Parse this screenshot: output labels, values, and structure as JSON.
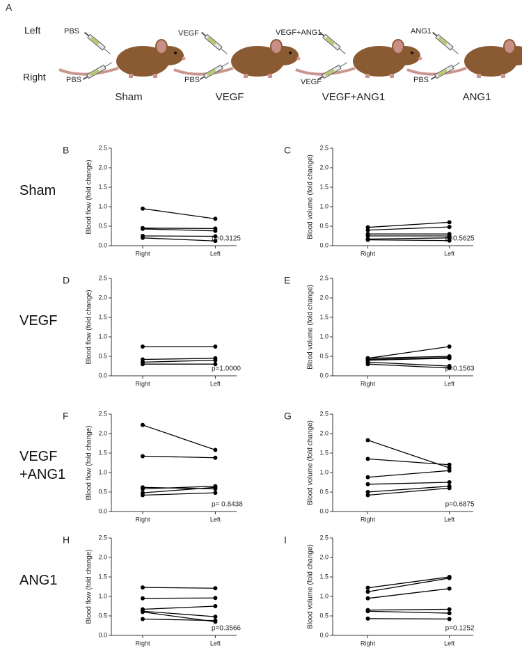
{
  "panel_a": {
    "letter": "A",
    "side_left": "Left",
    "side_right": "Right",
    "groups": [
      {
        "name": "Sham",
        "left": "PBS",
        "right": "PBS"
      },
      {
        "name": "VEGF",
        "left": "VEGF",
        "right": "PBS"
      },
      {
        "name": "VEGF+ANG1",
        "left": "VEGF+ANG1",
        "right": "VEGF"
      },
      {
        "name": "ANG1",
        "left": "ANG1",
        "right": "PBS"
      }
    ]
  },
  "chart_data": [
    {
      "type": "line",
      "panel": "B",
      "row_label": "Sham",
      "ylabel": "Blood flow (fold change)",
      "annotation": "p=0.3125",
      "categories": [
        "Right",
        "Left"
      ],
      "ylim": [
        0,
        2.5
      ],
      "yticks": [
        {
          "value": 0,
          "label": "0.0"
        },
        {
          "value": 0.5,
          "label": "0.5"
        },
        {
          "value": 1,
          "label": "1.0"
        },
        {
          "value": 1.5,
          "label": "1.5"
        },
        {
          "value": 2,
          "label": "2.0"
        },
        {
          "value": 2.5,
          "label": "2.5"
        }
      ],
      "color": "#000000",
      "series": [
        {
          "values": [
            0.95,
            0.69
          ]
        },
        {
          "values": [
            0.45,
            0.44
          ]
        },
        {
          "values": [
            0.43,
            0.38
          ]
        },
        {
          "values": [
            0.25,
            0.24
          ]
        },
        {
          "values": [
            0.2,
            0.12
          ]
        }
      ]
    },
    {
      "type": "line",
      "panel": "C",
      "ylabel": "Blood volume (fold change)",
      "annotation": "p=0.5625",
      "categories": [
        "Right",
        "Left"
      ],
      "ylim": [
        0,
        2.5
      ],
      "yticks": [
        {
          "value": 0,
          "label": "0.0"
        },
        {
          "value": 0.5,
          "label": "0.5"
        },
        {
          "value": 1,
          "label": "1.0"
        },
        {
          "value": 1.5,
          "label": "1.5"
        },
        {
          "value": 2,
          "label": "2.0"
        },
        {
          "value": 2.5,
          "label": "2.5"
        }
      ],
      "color": "#000000",
      "series": [
        {
          "values": [
            0.47,
            0.6
          ]
        },
        {
          "values": [
            0.4,
            0.48
          ]
        },
        {
          "values": [
            0.3,
            0.3
          ]
        },
        {
          "values": [
            0.25,
            0.25
          ]
        },
        {
          "values": [
            0.17,
            0.2
          ]
        },
        {
          "values": [
            0.15,
            0.13
          ]
        }
      ]
    },
    {
      "type": "line",
      "panel": "D",
      "row_label": "VEGF",
      "ylabel": "Blood flow (fold change)",
      "annotation": "p=1.0000",
      "categories": [
        "Right",
        "Left"
      ],
      "ylim": [
        0,
        2.5
      ],
      "yticks": [
        {
          "value": 0,
          "label": "0.0"
        },
        {
          "value": 0.5,
          "label": "0.5"
        },
        {
          "value": 1,
          "label": "1.0"
        },
        {
          "value": 1.5,
          "label": "1.5"
        },
        {
          "value": 2,
          "label": "2.0"
        },
        {
          "value": 2.5,
          "label": "2.5"
        }
      ],
      "color": "#000000",
      "series": [
        {
          "values": [
            0.75,
            0.75
          ]
        },
        {
          "values": [
            0.42,
            0.45
          ]
        },
        {
          "values": [
            0.35,
            0.4
          ]
        },
        {
          "values": [
            0.3,
            0.3
          ]
        }
      ]
    },
    {
      "type": "line",
      "panel": "E",
      "ylabel": "Blood volume (fold change)",
      "annotation": "p=0.1563",
      "categories": [
        "Right",
        "Left"
      ],
      "ylim": [
        0,
        2.5
      ],
      "yticks": [
        {
          "value": 0,
          "label": "0.0"
        },
        {
          "value": 0.5,
          "label": "0.5"
        },
        {
          "value": 1,
          "label": "1.0"
        },
        {
          "value": 1.5,
          "label": "1.5"
        },
        {
          "value": 2,
          "label": "2.0"
        },
        {
          "value": 2.5,
          "label": "2.5"
        }
      ],
      "color": "#000000",
      "series": [
        {
          "values": [
            0.45,
            0.75
          ]
        },
        {
          "values": [
            0.45,
            0.5
          ]
        },
        {
          "values": [
            0.42,
            0.47
          ]
        },
        {
          "values": [
            0.4,
            0.45
          ]
        },
        {
          "values": [
            0.35,
            0.25
          ]
        },
        {
          "values": [
            0.3,
            0.2
          ]
        }
      ]
    },
    {
      "type": "line",
      "panel": "F",
      "row_label": "VEGF +ANG1",
      "ylabel": "Blood flow (fold change)",
      "annotation": "p= 0.8438",
      "categories": [
        "Right",
        "Left"
      ],
      "ylim": [
        0,
        2.5
      ],
      "yticks": [
        {
          "value": 0,
          "label": "0.0"
        },
        {
          "value": 0.5,
          "label": "0.5"
        },
        {
          "value": 1,
          "label": "1.0"
        },
        {
          "value": 1.5,
          "label": "1.5"
        },
        {
          "value": 2,
          "label": "2.0"
        },
        {
          "value": 2.5,
          "label": "2.5"
        }
      ],
      "color": "#000000",
      "series": [
        {
          "values": [
            2.22,
            1.58
          ]
        },
        {
          "values": [
            1.42,
            1.38
          ]
        },
        {
          "values": [
            0.62,
            0.58
          ]
        },
        {
          "values": [
            0.58,
            0.65
          ]
        },
        {
          "values": [
            0.48,
            0.62
          ]
        },
        {
          "values": [
            0.42,
            0.48
          ]
        }
      ]
    },
    {
      "type": "line",
      "panel": "G",
      "ylabel": "Blood volume (fold change)",
      "annotation": "p=0.6875",
      "categories": [
        "Right",
        "Left"
      ],
      "ylim": [
        0,
        2.5
      ],
      "yticks": [
        {
          "value": 0,
          "label": "0.0"
        },
        {
          "value": 0.5,
          "label": "0.5"
        },
        {
          "value": 1,
          "label": "1.0"
        },
        {
          "value": 1.5,
          "label": "1.5"
        },
        {
          "value": 2,
          "label": "2.0"
        },
        {
          "value": 2.5,
          "label": "2.5"
        }
      ],
      "color": "#000000",
      "series": [
        {
          "values": [
            1.83,
            1.12
          ]
        },
        {
          "values": [
            1.35,
            1.2
          ]
        },
        {
          "values": [
            0.88,
            1.05
          ]
        },
        {
          "values": [
            0.7,
            0.75
          ]
        },
        {
          "values": [
            0.5,
            0.65
          ]
        },
        {
          "values": [
            0.42,
            0.6
          ]
        }
      ]
    },
    {
      "type": "line",
      "panel": "H",
      "row_label": "ANG1",
      "ylabel": "Blood flow (fold change)",
      "annotation": "p=0.3566",
      "categories": [
        "Right",
        "Left"
      ],
      "ylim": [
        0,
        2.5
      ],
      "yticks": [
        {
          "value": 0,
          "label": "0.0"
        },
        {
          "value": 0.5,
          "label": "0.5"
        },
        {
          "value": 1,
          "label": "1.0"
        },
        {
          "value": 1.5,
          "label": "1.5"
        },
        {
          "value": 2,
          "label": "2.0"
        },
        {
          "value": 2.5,
          "label": "2.5"
        }
      ],
      "color": "#000000",
      "series": [
        {
          "values": [
            1.23,
            1.21
          ]
        },
        {
          "values": [
            0.95,
            0.96
          ]
        },
        {
          "values": [
            0.67,
            0.75
          ]
        },
        {
          "values": [
            0.62,
            0.48
          ]
        },
        {
          "values": [
            0.6,
            0.35
          ]
        },
        {
          "values": [
            0.42,
            0.38
          ]
        }
      ]
    },
    {
      "type": "line",
      "panel": "I",
      "ylabel": "Blood volume (fold change)",
      "annotation": "p=0.1252",
      "categories": [
        "Right",
        "Left"
      ],
      "ylim": [
        0,
        2.5
      ],
      "yticks": [
        {
          "value": 0,
          "label": "0.0"
        },
        {
          "value": 0.5,
          "label": "0.5"
        },
        {
          "value": 1,
          "label": "1.0"
        },
        {
          "value": 1.5,
          "label": "1.5"
        },
        {
          "value": 2,
          "label": "2.0"
        },
        {
          "value": 2.5,
          "label": "2.5"
        }
      ],
      "color": "#000000",
      "series": [
        {
          "values": [
            1.22,
            1.5
          ]
        },
        {
          "values": [
            1.12,
            1.47
          ]
        },
        {
          "values": [
            0.95,
            1.2
          ]
        },
        {
          "values": [
            0.65,
            0.67
          ]
        },
        {
          "values": [
            0.62,
            0.57
          ]
        },
        {
          "values": [
            0.43,
            0.42
          ]
        }
      ]
    }
  ]
}
